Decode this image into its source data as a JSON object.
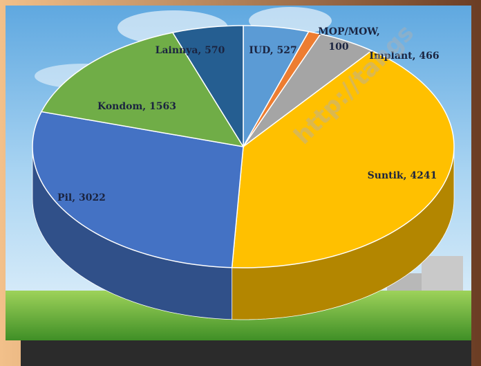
{
  "chart_data": {
    "type": "pie",
    "values": [
      527,
      100,
      466,
      4241,
      3022,
      1563,
      570
    ],
    "value_labels": [
      "IUD, 527",
      "MOP/MOW, 100",
      "Implant, 466",
      "Suntik, 4241",
      "Pil, 3022",
      "Kondom, 1563",
      "Lainnya, 570"
    ],
    "colors": [
      "#5b9bd5",
      "#ed7d31",
      "#a5a5a5",
      "#ffc000",
      "#4472c4",
      "#70ad47",
      "#255e91"
    ],
    "watermark": "http://tangs"
  }
}
